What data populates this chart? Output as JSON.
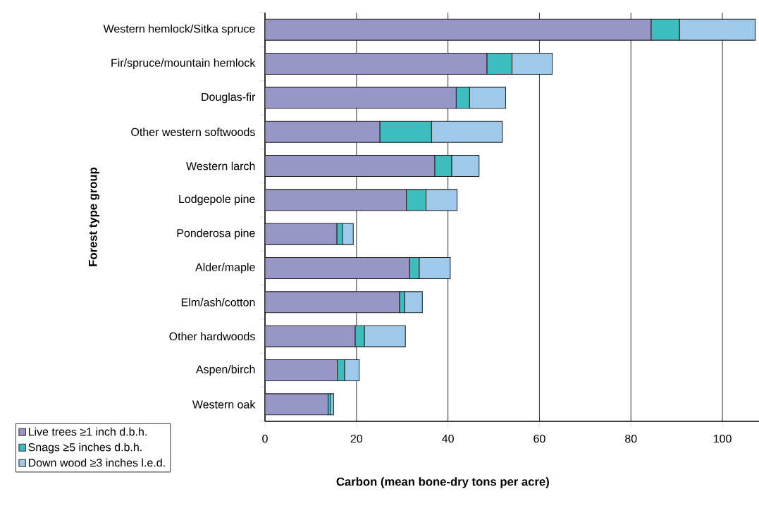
{
  "chart_data": {
    "type": "bar",
    "orientation": "horizontal",
    "stacked": true,
    "xlabel": "Carbon (mean bone-dry tons per acre)",
    "ylabel": "Forest type group",
    "categories": [
      "Western hemlock/Sitka spruce",
      "Fir/spruce/mountain hemlock",
      "Douglas-fir",
      "Other western softwoods",
      "Western larch",
      "Lodgepole pine",
      "Ponderosa pine",
      "Alder/maple",
      "Elm/ash/cotton",
      "Other hardwoods",
      "Aspen/birch",
      "Western oak"
    ],
    "series": [
      {
        "name": "Live trees ≥1 inch d.b.h.",
        "color": "#9896c8",
        "values": [
          84.4,
          48.5,
          41.8,
          25.1,
          37.1,
          30.9,
          15.7,
          31.6,
          29.4,
          19.7,
          15.8,
          13.8
        ]
      },
      {
        "name": "Snags ≥5 inches d.b.h.",
        "color": "#3dbdbd",
        "values": [
          6.2,
          5.5,
          2.9,
          11.3,
          3.7,
          4.3,
          1.2,
          2.1,
          1.1,
          2.0,
          1.6,
          0.6
        ]
      },
      {
        "name": "Down wood ≥3 inches l.e.d.",
        "color": "#9ec9ea",
        "values": [
          16.6,
          8.8,
          7.9,
          15.5,
          6.0,
          6.8,
          2.4,
          6.8,
          3.9,
          9.0,
          3.2,
          0.6
        ]
      }
    ],
    "xlim": [
      0,
      108
    ],
    "xticks": [
      0,
      20,
      40,
      60,
      80,
      100
    ],
    "grid": "x",
    "legend": "bottom left"
  }
}
